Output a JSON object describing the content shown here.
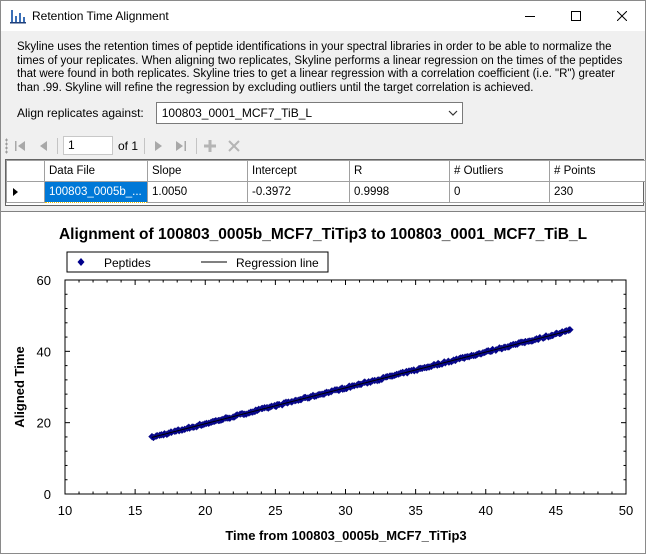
{
  "window": {
    "title": "Retention Time Alignment",
    "icon": "skyline-chart-icon"
  },
  "description": "Skyline uses the retention times of peptide identifications in your spectral libraries in order to be able to normalize the times of your replicates. When aligning two replicates, Skyline performs a linear regression on the times of the peptides that were found in both replicates. Skyline tries to get a linear regression with a correlation coefficient (i.e. \"R\") greater than .99. Skyline will refine the regression by excluding outliers until the target correlation is achieved.",
  "align": {
    "label": "Align replicates against:",
    "selected": "100803_0001_MCF7_TiB_L"
  },
  "navigator": {
    "position": "1",
    "of_label": "of 1"
  },
  "grid": {
    "columns": [
      "Data File",
      "Slope",
      "Intercept",
      "R",
      "# Outliers",
      "# Points"
    ],
    "rows": [
      [
        "100803_0005b_...",
        "1.0050",
        "-0.3972",
        "0.9998",
        "0",
        "230"
      ]
    ]
  },
  "chart_data": {
    "type": "scatter",
    "title": "Alignment of 100803_0005b_MCF7_TiTip3 to 100803_0001_MCF7_TiB_L",
    "xlabel": "Time from 100803_0005b_MCF7_TiTip3",
    "ylabel": "Aligned Time",
    "xlim": [
      10,
      50
    ],
    "ylim": [
      0,
      60
    ],
    "xticks": [
      10,
      15,
      20,
      25,
      30,
      35,
      40,
      45,
      50
    ],
    "yticks": [
      0,
      20,
      40,
      60
    ],
    "legend_position": "top-left",
    "series": [
      {
        "name": "Peptides",
        "marker": "diamond",
        "color": "#00008b",
        "x_range": [
          16.2,
          46.0
        ],
        "count": 230
      },
      {
        "name": "Regression line",
        "kind": "line",
        "color": "#000000",
        "slope": 1.005,
        "intercept": -0.3972
      }
    ]
  }
}
